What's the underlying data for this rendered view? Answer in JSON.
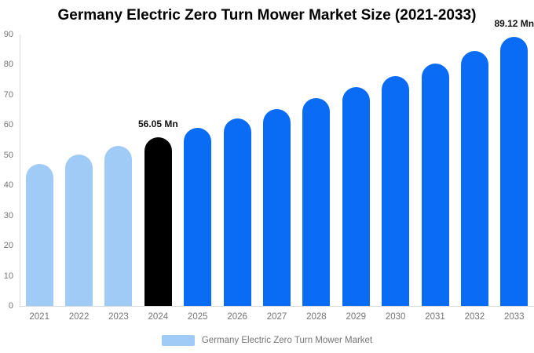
{
  "chart": {
    "title": "Germany Electric Zero Turn Mower Market Size (2021-2033)",
    "legend": {
      "label": "Germany Electric Zero Turn Mower Market",
      "swatch_color": "#A1CBF7"
    }
  },
  "chart_data": {
    "type": "bar",
    "title": "Germany Electric Zero Turn Mower Market Size (2021-2033)",
    "unit": "Mn",
    "categories": [
      "2021",
      "2022",
      "2023",
      "2024",
      "2025",
      "2026",
      "2027",
      "2028",
      "2029",
      "2030",
      "2031",
      "2032",
      "2033"
    ],
    "values": [
      47.2,
      50.2,
      53.0,
      56.05,
      59.0,
      62.1,
      65.4,
      68.9,
      72.5,
      76.3,
      80.4,
      84.6,
      89.12
    ],
    "ylim": [
      0,
      90
    ],
    "y_ticks": [
      0,
      10,
      20,
      30,
      40,
      50,
      60,
      70,
      80,
      90
    ],
    "grid": false,
    "xlabel": "",
    "ylabel": "",
    "legend_position": "bottom",
    "legend_entries": [
      "Germany Electric Zero Turn Mower Market"
    ],
    "series_colors": {
      "historical": "#A1CBF7",
      "base_year": "#000000",
      "forecast": "#0A6CF5"
    },
    "point_colors": [
      "#A1CBF7",
      "#A1CBF7",
      "#A1CBF7",
      "#000000",
      "#0A6CF5",
      "#0A6CF5",
      "#0A6CF5",
      "#0A6CF5",
      "#0A6CF5",
      "#0A6CF5",
      "#0A6CF5",
      "#0A6CF5",
      "#0A6CF5"
    ],
    "annotations": [
      {
        "category": "2024",
        "text": "56.05 Mn"
      },
      {
        "category": "2033",
        "text": "89.12 Mn"
      }
    ],
    "text_colors": {
      "title": "#000000",
      "axis": "#757575",
      "annotation": "#111111"
    },
    "axis_line_color": "#D9D9D9"
  }
}
